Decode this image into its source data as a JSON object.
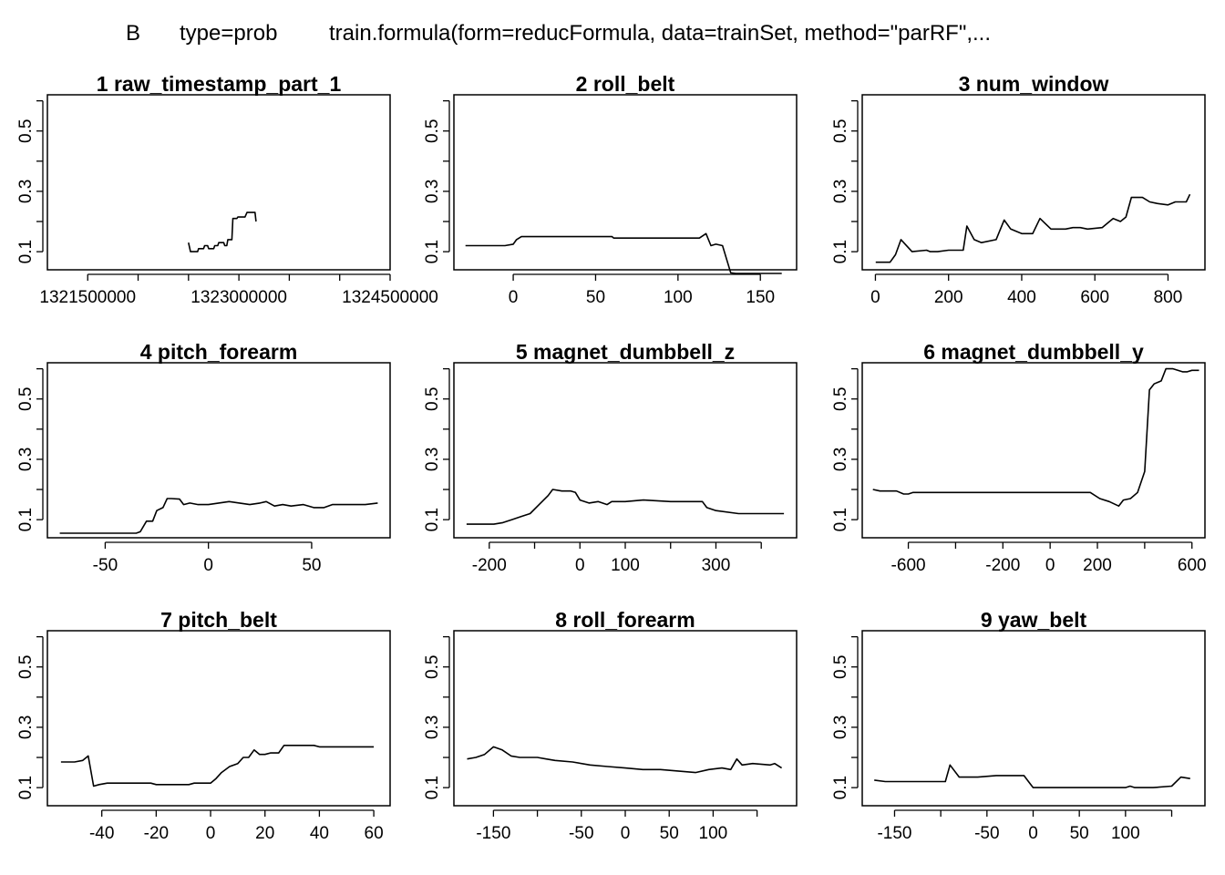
{
  "header": {
    "label_b": "B",
    "label_type": "type=prob",
    "label_call": "train.formula(form=reducFormula, data=trainSet, method=\"parRF\",..."
  },
  "chart_data": [
    {
      "type": "line",
      "title": "1  raw_timestamp_part_1",
      "xlim": [
        1321100000,
        1324500000
      ],
      "ylim": [
        0.04,
        0.62
      ],
      "xticks": [
        1321500000,
        1322000000,
        1322500000,
        1323000000,
        1323500000,
        1324000000,
        1324500000
      ],
      "xtick_labels": [
        "1321500000",
        "",
        "",
        "1323000000",
        "",
        "",
        "1324500000"
      ],
      "yticks": [
        0.1,
        0.2,
        0.3,
        0.4,
        0.5,
        0.6
      ],
      "ytick_labels": [
        "0.1",
        "",
        "0.3",
        "",
        "0.5",
        ""
      ],
      "series": [
        {
          "x": [
            1322500000,
            1322520000,
            1322590000,
            1322600000,
            1322650000,
            1322660000,
            1322690000,
            1322700000,
            1322750000,
            1322760000,
            1322790000,
            1322800000,
            1322850000,
            1322860000,
            1322880000,
            1322890000,
            1322930000,
            1322940000,
            1322980000,
            1322990000,
            1323060000,
            1323080000,
            1323110000,
            1323160000,
            1323170000
          ],
          "y": [
            0.13,
            0.1,
            0.1,
            0.11,
            0.11,
            0.12,
            0.12,
            0.11,
            0.11,
            0.12,
            0.12,
            0.13,
            0.13,
            0.12,
            0.12,
            0.14,
            0.14,
            0.21,
            0.21,
            0.215,
            0.215,
            0.23,
            0.23,
            0.23,
            0.2
          ]
        }
      ]
    },
    {
      "type": "line",
      "title": "2  roll_belt",
      "xlim": [
        -36,
        172
      ],
      "ylim": [
        0.04,
        0.62
      ],
      "xticks": [
        0,
        50,
        100,
        150
      ],
      "xtick_labels": [
        "0",
        "50",
        "100",
        "150"
      ],
      "yticks": [
        0.1,
        0.2,
        0.3,
        0.4,
        0.5,
        0.6
      ],
      "ytick_labels": [
        "0.1",
        "",
        "0.3",
        "",
        "0.5",
        ""
      ],
      "series": [
        {
          "x": [
            -29,
            -23,
            -17,
            -10,
            -5,
            0,
            2,
            5,
            30,
            60,
            61,
            90,
            113,
            117,
            120,
            123,
            127,
            132,
            135,
            150,
            163
          ],
          "y": [
            0.12,
            0.12,
            0.12,
            0.12,
            0.12,
            0.125,
            0.14,
            0.15,
            0.15,
            0.15,
            0.145,
            0.145,
            0.145,
            0.16,
            0.12,
            0.125,
            0.12,
            0.03,
            0.028,
            0.028,
            0.028
          ]
        }
      ]
    },
    {
      "type": "line",
      "title": "3  num_window",
      "xlim": [
        -36,
        901
      ],
      "ylim": [
        0.04,
        0.62
      ],
      "xticks": [
        0,
        200,
        400,
        600,
        800
      ],
      "xtick_labels": [
        "0",
        "200",
        "400",
        "600",
        "800"
      ],
      "yticks": [
        0.1,
        0.2,
        0.3,
        0.4,
        0.5,
        0.6
      ],
      "ytick_labels": [
        "0.1",
        "",
        "0.3",
        "",
        "0.5",
        ""
      ],
      "series": [
        {
          "x": [
            1,
            40,
            55,
            70,
            100,
            140,
            150,
            170,
            200,
            240,
            250,
            270,
            290,
            330,
            352,
            370,
            400,
            430,
            450,
            480,
            520,
            540,
            560,
            580,
            620,
            640,
            650,
            670,
            685,
            700,
            730,
            750,
            770,
            800,
            820,
            850,
            860
          ],
          "y": [
            0.065,
            0.065,
            0.09,
            0.14,
            0.1,
            0.105,
            0.1,
            0.1,
            0.105,
            0.105,
            0.185,
            0.14,
            0.13,
            0.14,
            0.205,
            0.175,
            0.16,
            0.16,
            0.21,
            0.175,
            0.175,
            0.18,
            0.18,
            0.175,
            0.18,
            0.2,
            0.21,
            0.2,
            0.215,
            0.28,
            0.28,
            0.265,
            0.26,
            0.255,
            0.265,
            0.265,
            0.29
          ]
        }
      ]
    },
    {
      "type": "line",
      "title": "4  pitch_forearm",
      "xlim": [
        -78,
        88
      ],
      "ylim": [
        0.04,
        0.62
      ],
      "xticks": [
        -50,
        0,
        50
      ],
      "xtick_labels": [
        "-50",
        "0",
        "50"
      ],
      "yticks": [
        0.1,
        0.2,
        0.3,
        0.4,
        0.5,
        0.6
      ],
      "ytick_labels": [
        "0.1",
        "",
        "0.3",
        "",
        "0.5",
        ""
      ],
      "series": [
        {
          "x": [
            -72,
            -60,
            -50,
            -40,
            -35,
            -33,
            -30,
            -27,
            -25,
            -22,
            -20,
            -18,
            -14,
            -12,
            -9,
            -5,
            0,
            5,
            10,
            15,
            20,
            25,
            28,
            32,
            36,
            40,
            46,
            51,
            53,
            56,
            60,
            66,
            70,
            76,
            82
          ],
          "y": [
            0.055,
            0.055,
            0.055,
            0.055,
            0.055,
            0.06,
            0.095,
            0.095,
            0.13,
            0.14,
            0.17,
            0.17,
            0.168,
            0.15,
            0.155,
            0.15,
            0.15,
            0.155,
            0.16,
            0.155,
            0.15,
            0.155,
            0.16,
            0.145,
            0.15,
            0.145,
            0.15,
            0.14,
            0.14,
            0.14,
            0.15,
            0.15,
            0.15,
            0.15,
            0.155
          ]
        }
      ]
    },
    {
      "type": "line",
      "title": "5  magnet_dumbbell_z",
      "xlim": [
        -278,
        478
      ],
      "ylim": [
        0.04,
        0.62
      ],
      "xticks": [
        -200,
        -100,
        0,
        100,
        200,
        300,
        400
      ],
      "xtick_labels": [
        "-200",
        "",
        "0",
        "100",
        "",
        "300",
        ""
      ],
      "yticks": [
        0.1,
        0.2,
        0.3,
        0.4,
        0.5,
        0.6
      ],
      "ytick_labels": [
        "0.1",
        "",
        "0.3",
        "",
        "0.5",
        ""
      ],
      "series": [
        {
          "x": [
            -250,
            -190,
            -170,
            -150,
            -130,
            -110,
            -90,
            -70,
            -60,
            -40,
            -20,
            -10,
            0,
            20,
            40,
            60,
            70,
            80,
            100,
            140,
            200,
            270,
            280,
            300,
            350,
            400,
            450
          ],
          "y": [
            0.085,
            0.085,
            0.09,
            0.1,
            0.11,
            0.12,
            0.15,
            0.18,
            0.2,
            0.195,
            0.195,
            0.19,
            0.165,
            0.155,
            0.16,
            0.15,
            0.16,
            0.16,
            0.16,
            0.165,
            0.16,
            0.16,
            0.14,
            0.13,
            0.12,
            0.12,
            0.12
          ]
        }
      ]
    },
    {
      "type": "line",
      "title": "6  magnet_dumbbell_y",
      "xlim": [
        -795,
        655
      ],
      "ylim": [
        0.04,
        0.62
      ],
      "xticks": [
        -600,
        -400,
        -200,
        0,
        200,
        400,
        600
      ],
      "xtick_labels": [
        "-600",
        "",
        "-200",
        "0",
        "200",
        "",
        "600"
      ],
      "yticks": [
        0.1,
        0.2,
        0.3,
        0.4,
        0.5,
        0.6
      ],
      "ytick_labels": [
        "0.1",
        "",
        "0.3",
        "",
        "0.5",
        ""
      ],
      "series": [
        {
          "x": [
            -750,
            -720,
            -650,
            -620,
            -600,
            -580,
            -500,
            150,
            170,
            210,
            250,
            290,
            310,
            340,
            370,
            400,
            420,
            440,
            470,
            490,
            520,
            540,
            560,
            580,
            600,
            630
          ],
          "y": [
            0.2,
            0.195,
            0.195,
            0.185,
            0.185,
            0.19,
            0.19,
            0.19,
            0.19,
            0.17,
            0.16,
            0.145,
            0.165,
            0.17,
            0.19,
            0.26,
            0.53,
            0.55,
            0.56,
            0.6,
            0.6,
            0.595,
            0.59,
            0.59,
            0.595,
            0.595
          ]
        }
      ]
    },
    {
      "type": "line",
      "title": "7  pitch_belt",
      "xlim": [
        -60,
        66
      ],
      "ylim": [
        0.04,
        0.62
      ],
      "xticks": [
        -40,
        -20,
        0,
        20,
        40,
        60
      ],
      "xtick_labels": [
        "-40",
        "-20",
        "0",
        "20",
        "40",
        "60"
      ],
      "yticks": [
        0.1,
        0.2,
        0.3,
        0.4,
        0.5,
        0.6
      ],
      "ytick_labels": [
        "0.1",
        "",
        "0.3",
        "",
        "0.5",
        ""
      ],
      "series": [
        {
          "x": [
            -55,
            -50,
            -47,
            -45,
            -43,
            -41,
            -38,
            -30,
            -22,
            -20,
            -15,
            -8,
            -6,
            -2,
            0,
            2,
            4,
            7,
            10,
            12,
            14,
            16,
            18,
            20,
            22,
            25,
            27,
            30,
            35,
            38,
            40,
            45,
            55,
            60
          ],
          "y": [
            0.185,
            0.185,
            0.19,
            0.205,
            0.105,
            0.11,
            0.115,
            0.115,
            0.115,
            0.11,
            0.11,
            0.11,
            0.115,
            0.115,
            0.115,
            0.13,
            0.15,
            0.17,
            0.18,
            0.2,
            0.2,
            0.225,
            0.21,
            0.21,
            0.215,
            0.215,
            0.24,
            0.24,
            0.24,
            0.24,
            0.235,
            0.235,
            0.235,
            0.235
          ]
        }
      ]
    },
    {
      "type": "line",
      "title": "8  roll_forearm",
      "xlim": [
        -195,
        195
      ],
      "ylim": [
        0.04,
        0.62
      ],
      "xticks": [
        -150,
        -100,
        -50,
        0,
        50,
        100,
        150
      ],
      "xtick_labels": [
        "-150",
        "",
        "-50",
        "0",
        "50",
        "100",
        ""
      ],
      "yticks": [
        0.1,
        0.2,
        0.3,
        0.4,
        0.5,
        0.6
      ],
      "ytick_labels": [
        "0.1",
        "",
        "0.3",
        "",
        "0.5",
        ""
      ],
      "series": [
        {
          "x": [
            -180,
            -170,
            -160,
            -150,
            -140,
            -130,
            -120,
            -100,
            -90,
            -80,
            -60,
            -40,
            -20,
            0,
            20,
            40,
            60,
            80,
            95,
            110,
            120,
            127,
            133,
            145,
            165,
            170,
            178
          ],
          "y": [
            0.195,
            0.2,
            0.21,
            0.235,
            0.225,
            0.205,
            0.2,
            0.2,
            0.195,
            0.19,
            0.185,
            0.175,
            0.17,
            0.165,
            0.16,
            0.16,
            0.155,
            0.15,
            0.16,
            0.165,
            0.16,
            0.195,
            0.175,
            0.18,
            0.175,
            0.18,
            0.165
          ]
        }
      ]
    },
    {
      "type": "line",
      "title": "9  yaw_belt",
      "xlim": [
        -185,
        186
      ],
      "ylim": [
        0.04,
        0.62
      ],
      "xticks": [
        -150,
        -100,
        -50,
        0,
        50,
        100,
        150
      ],
      "xtick_labels": [
        "-150",
        "",
        "-50",
        "0",
        "50",
        "100",
        ""
      ],
      "yticks": [
        0.1,
        0.2,
        0.3,
        0.4,
        0.5,
        0.6
      ],
      "ytick_labels": [
        "0.1",
        "",
        "0.3",
        "",
        "0.5",
        ""
      ],
      "series": [
        {
          "x": [
            -172,
            -160,
            -140,
            -120,
            -100,
            -95,
            -90,
            -80,
            -60,
            -40,
            -20,
            -10,
            -5,
            0,
            20,
            40,
            60,
            100,
            105,
            110,
            130,
            150,
            160,
            170
          ],
          "y": [
            0.125,
            0.12,
            0.12,
            0.12,
            0.12,
            0.12,
            0.175,
            0.135,
            0.135,
            0.14,
            0.14,
            0.14,
            0.12,
            0.1,
            0.1,
            0.1,
            0.1,
            0.1,
            0.105,
            0.1,
            0.1,
            0.105,
            0.135,
            0.13
          ]
        }
      ]
    }
  ]
}
